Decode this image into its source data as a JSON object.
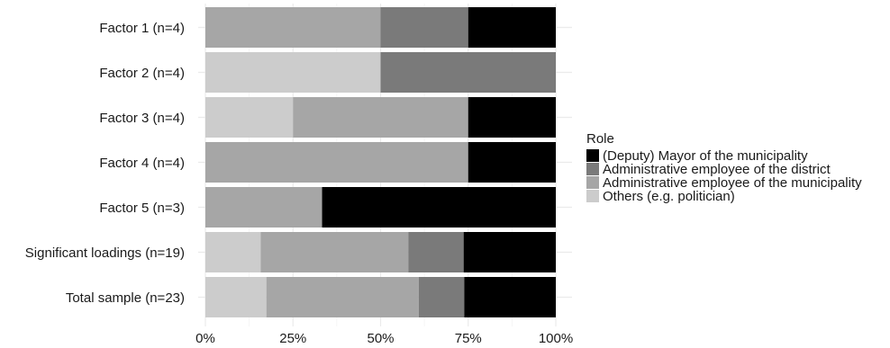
{
  "chart_data": {
    "type": "bar",
    "orientation": "horizontal",
    "stacked": true,
    "categories": [
      "Factor 1 (n=4)",
      "Factor 2 (n=4)",
      "Factor 3 (n=4)",
      "Factor 4 (n=4)",
      "Factor 5 (n=3)",
      "Significant loadings (n=19)",
      "Total sample (n=23)"
    ],
    "series": [
      {
        "name": "Others (e.g. politician)",
        "color": "#cccccc",
        "values": [
          0,
          50,
          25,
          0,
          0,
          15.8,
          17.4
        ]
      },
      {
        "name": "Administrative employee of the municipality",
        "color": "#a6a6a6",
        "values": [
          50,
          0,
          50,
          75,
          33.3,
          42.1,
          43.5
        ]
      },
      {
        "name": "Administrative employee of the district",
        "color": "#7a7a7a",
        "values": [
          25,
          50,
          0,
          0,
          0,
          15.8,
          13.0
        ]
      },
      {
        "name": "(Deputy) Mayor of the municipality",
        "color": "#000000",
        "values": [
          25,
          0,
          25,
          25,
          66.7,
          26.3,
          26.1
        ]
      }
    ],
    "xticks": [
      "0%",
      "25%",
      "50%",
      "75%",
      "100%"
    ],
    "xlim": [
      0,
      100
    ],
    "xlabel": "",
    "ylabel": "",
    "grid": true,
    "legend": {
      "title": "Role",
      "position": "right",
      "order": [
        "(Deputy) Mayor of the municipality",
        "Administrative employee of the district",
        "Administrative employee of the municipality",
        "Others (e.g. politician)"
      ]
    }
  }
}
